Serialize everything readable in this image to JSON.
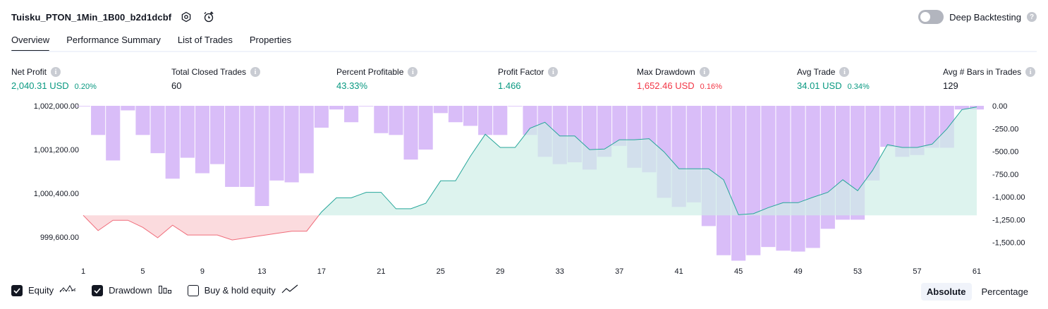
{
  "header": {
    "strategy_name": "Tuisku_PTON_1Min_1B00_b2d1dcbf",
    "deep_backtesting_label": "Deep Backtesting",
    "deep_backtesting_on": false
  },
  "tabs": [
    "Overview",
    "Performance Summary",
    "List of Trades",
    "Properties"
  ],
  "active_tab": "Overview",
  "metrics": [
    {
      "label": "Net Profit",
      "value": "2,040.31 USD",
      "pct": "0.20%",
      "tone": "pos"
    },
    {
      "label": "Total Closed Trades",
      "value": "60",
      "pct": "",
      "tone": "neu"
    },
    {
      "label": "Percent Profitable",
      "value": "43.33%",
      "pct": "",
      "tone": "pos"
    },
    {
      "label": "Profit Factor",
      "value": "1.466",
      "pct": "",
      "tone": "pos"
    },
    {
      "label": "Max Drawdown",
      "value": "1,652.46 USD",
      "pct": "0.16%",
      "tone": "neg"
    },
    {
      "label": "Avg Trade",
      "value": "34.01 USD",
      "pct": "0.34%",
      "tone": "pos"
    },
    {
      "label": "Avg # Bars in Trades",
      "value": "129",
      "pct": "",
      "tone": "neu"
    }
  ],
  "chart_data": {
    "type": "area",
    "x_ticks": [
      1,
      5,
      9,
      13,
      17,
      21,
      25,
      29,
      33,
      37,
      41,
      45,
      49,
      53,
      57,
      61
    ],
    "left_axis": {
      "ticks": [
        "1,002,000.00",
        "1,001,200.00",
        "1,000,400.00",
        "999,600.00"
      ],
      "range": [
        999300,
        1002000
      ]
    },
    "right_axis": {
      "ticks": [
        "0.00",
        "-250.00",
        "-500.00",
        "-750.00",
        "-1,000.00",
        "-1,250.00",
        "-1,500.00"
      ],
      "range": [
        -1700,
        0
      ]
    },
    "baseline_equity": 1000000,
    "series": [
      {
        "name": "Equity",
        "x": [
          1,
          2,
          3,
          4,
          5,
          6,
          7,
          8,
          9,
          10,
          11,
          12,
          13,
          14,
          15,
          16,
          17,
          18,
          19,
          20,
          21,
          22,
          23,
          24,
          25,
          26,
          27,
          28,
          29,
          30,
          31,
          32,
          33,
          34,
          35,
          36,
          37,
          38,
          39,
          40,
          41,
          42,
          43,
          44,
          45,
          46,
          47,
          48,
          49,
          50,
          51,
          52,
          53,
          54,
          55,
          56,
          57,
          58,
          59,
          60,
          61
        ],
        "y": [
          1000000,
          999720,
          999910,
          999910,
          999780,
          999590,
          999820,
          999640,
          999640,
          999640,
          999550,
          999590,
          999630,
          999670,
          999710,
          999710,
          1000060,
          1000320,
          1000320,
          1000420,
          1000420,
          1000120,
          1000120,
          1000220,
          1000630,
          1000630,
          1001080,
          1001480,
          1001240,
          1001240,
          1001590,
          1001700,
          1001450,
          1001450,
          1001200,
          1001210,
          1001380,
          1001380,
          1001400,
          1001160,
          1000850,
          1000850,
          1000850,
          1000650,
          1000010,
          1000030,
          1000140,
          1000230,
          1000230,
          1000330,
          1000420,
          1000650,
          1000450,
          1000820,
          1001290,
          1001240,
          1001240,
          1001300,
          1001580,
          1001930,
          1001980
        ]
      },
      {
        "name": "Drawdown",
        "values": [
          0,
          -320,
          -600,
          -50,
          -320,
          -520,
          -800,
          -570,
          -740,
          -640,
          -890,
          -890,
          -1100,
          -820,
          -840,
          -740,
          -240,
          -40,
          -180,
          0,
          -300,
          -320,
          -590,
          -480,
          -80,
          -180,
          -220,
          -320,
          -320,
          0,
          -320,
          -560,
          -640,
          -620,
          -700,
          -560,
          -440,
          -680,
          -730,
          -1010,
          -1110,
          -1060,
          -1320,
          -1640,
          -1700,
          -1640,
          -1550,
          -1590,
          -1600,
          -1560,
          -1350,
          -1250,
          -1250,
          -820,
          -450,
          -560,
          -540,
          -460,
          -460,
          -40,
          -40
        ]
      }
    ],
    "colors": {
      "drawdown": "#d9bdf8",
      "equity_line_pos": "#26a69a",
      "equity_fill_pos": "#cfeee7",
      "equity_line_neg": "#f06c7a",
      "equity_fill_neg": "#fbd9dc"
    }
  },
  "legend": [
    {
      "label": "Equity",
      "checked": true,
      "icon": "equity-line-icon"
    },
    {
      "label": "Drawdown",
      "checked": true,
      "icon": "bars-icon"
    },
    {
      "label": "Buy & hold equity",
      "checked": false,
      "icon": "trend-line-icon"
    }
  ],
  "modes": [
    "Absolute",
    "Percentage"
  ],
  "active_mode": "Absolute"
}
